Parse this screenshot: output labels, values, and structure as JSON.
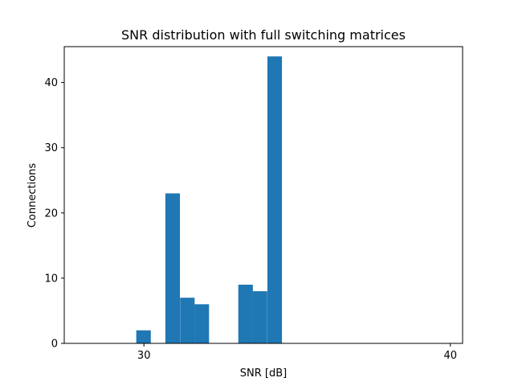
{
  "chart_data": {
    "type": "bar",
    "title": "SNR distribution with full switching matrices",
    "xlabel": "SNR [dB]",
    "ylabel": "Connections",
    "xlim": [
      27.4,
      40.4
    ],
    "ylim": [
      0,
      45.5
    ],
    "xticks": [
      30,
      40
    ],
    "yticks": [
      0,
      10,
      20,
      30,
      40
    ],
    "bin_width": 0.475,
    "bins": [
      {
        "x_start": 29.75,
        "value": 2
      },
      {
        "x_start": 30.7,
        "value": 23
      },
      {
        "x_start": 31.18,
        "value": 7
      },
      {
        "x_start": 31.65,
        "value": 6
      },
      {
        "x_start": 33.08,
        "value": 9
      },
      {
        "x_start": 33.55,
        "value": 8
      },
      {
        "x_start": 34.03,
        "value": 44
      }
    ],
    "bar_color": "#1f77b4",
    "grid": false
  }
}
